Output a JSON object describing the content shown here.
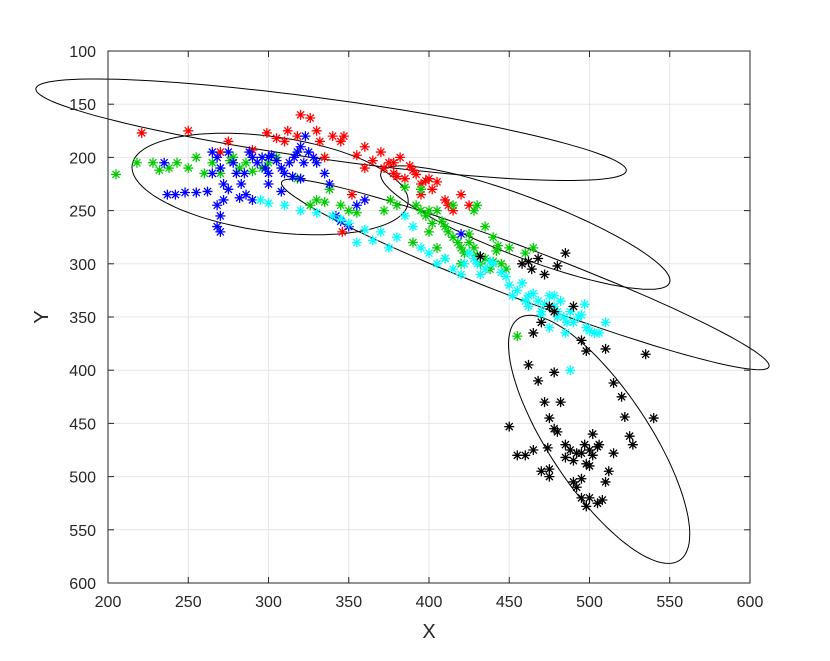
{
  "chart_data": {
    "type": "scatter",
    "title": "",
    "xlabel": "X",
    "ylabel": "Y",
    "xlim": [
      200,
      600
    ],
    "ylim": [
      100,
      600
    ],
    "y_reversed": true,
    "grid": true,
    "marker": "asterisk",
    "xticks": [
      "200",
      "250",
      "300",
      "350",
      "400",
      "450",
      "500",
      "550",
      "600"
    ],
    "yticks": [
      "100",
      "150",
      "200",
      "250",
      "300",
      "350",
      "400",
      "450",
      "500",
      "550",
      "600"
    ],
    "series": [
      {
        "color": "#ff0000",
        "points": [
          [
            221,
            177
          ],
          [
            250,
            175
          ],
          [
            270,
            195
          ],
          [
            275,
            185
          ],
          [
            290,
            193
          ],
          [
            299,
            177
          ],
          [
            305,
            182
          ],
          [
            310,
            185
          ],
          [
            312,
            175
          ],
          [
            318,
            180
          ],
          [
            320,
            160
          ],
          [
            326,
            163
          ],
          [
            330,
            175
          ],
          [
            332,
            185
          ],
          [
            335,
            200
          ],
          [
            340,
            180
          ],
          [
            345,
            185
          ],
          [
            347,
            180
          ],
          [
            352,
            235
          ],
          [
            355,
            198
          ],
          [
            360,
            210
          ],
          [
            365,
            203
          ],
          [
            370,
            195
          ],
          [
            372,
            210
          ],
          [
            375,
            205
          ],
          [
            378,
            215
          ],
          [
            380,
            218
          ],
          [
            382,
            200
          ],
          [
            385,
            220
          ],
          [
            388,
            208
          ],
          [
            390,
            212
          ],
          [
            392,
            216
          ],
          [
            395,
            225
          ],
          [
            398,
            222
          ],
          [
            400,
            220
          ],
          [
            402,
            230
          ],
          [
            405,
            223
          ],
          [
            410,
            240
          ],
          [
            412,
            245
          ],
          [
            415,
            250
          ],
          [
            420,
            235
          ],
          [
            425,
            245
          ],
          [
            360,
            190
          ],
          [
            378,
            205
          ],
          [
            395,
            235
          ],
          [
            346,
            270
          ]
        ]
      },
      {
        "color": "#00cc00",
        "points": [
          [
            205,
            216
          ],
          [
            218,
            205
          ],
          [
            228,
            205
          ],
          [
            232,
            212
          ],
          [
            238,
            210
          ],
          [
            243,
            205
          ],
          [
            250,
            210
          ],
          [
            255,
            200
          ],
          [
            260,
            215
          ],
          [
            265,
            205
          ],
          [
            270,
            215
          ],
          [
            276,
            203
          ],
          [
            282,
            210
          ],
          [
            286,
            205
          ],
          [
            290,
            213
          ],
          [
            296,
            210
          ],
          [
            305,
            200
          ],
          [
            318,
            220
          ],
          [
            326,
            245
          ],
          [
            330,
            240
          ],
          [
            335,
            242
          ],
          [
            338,
            230
          ],
          [
            345,
            245
          ],
          [
            350,
            250
          ],
          [
            355,
            252
          ],
          [
            372,
            250
          ],
          [
            376,
            240
          ],
          [
            380,
            245
          ],
          [
            385,
            228
          ],
          [
            390,
            280
          ],
          [
            392,
            245
          ],
          [
            395,
            250
          ],
          [
            398,
            255
          ],
          [
            400,
            270
          ],
          [
            402,
            262
          ],
          [
            405,
            250
          ],
          [
            408,
            260
          ],
          [
            410,
            265
          ],
          [
            412,
            270
          ],
          [
            415,
            275
          ],
          [
            418,
            280
          ],
          [
            420,
            285
          ],
          [
            422,
            290
          ],
          [
            425,
            280
          ],
          [
            428,
            285
          ],
          [
            430,
            292
          ],
          [
            432,
            300
          ],
          [
            435,
            295
          ],
          [
            438,
            305
          ],
          [
            440,
            298
          ],
          [
            442,
            288
          ],
          [
            445,
            300
          ],
          [
            448,
            305
          ],
          [
            450,
            285
          ],
          [
            455,
            368
          ],
          [
            460,
            290
          ],
          [
            465,
            285
          ],
          [
            395,
            230
          ],
          [
            415,
            245
          ],
          [
            420,
            300
          ],
          [
            428,
            250
          ],
          [
            435,
            265
          ],
          [
            440,
            275
          ],
          [
            300,
            205
          ],
          [
            278,
            200
          ],
          [
            400,
            250
          ],
          [
            405,
            285
          ],
          [
            410,
            295
          ],
          [
            425,
            272
          ],
          [
            430,
            245
          ],
          [
            443,
            283
          ]
        ]
      },
      {
        "color": "#0000ff",
        "points": [
          [
            235,
            205
          ],
          [
            237,
            235
          ],
          [
            242,
            235
          ],
          [
            248,
            233
          ],
          [
            255,
            233
          ],
          [
            262,
            232
          ],
          [
            265,
            195
          ],
          [
            268,
            200
          ],
          [
            270,
            210
          ],
          [
            272,
            225
          ],
          [
            275,
            195
          ],
          [
            278,
            205
          ],
          [
            280,
            215
          ],
          [
            283,
            225
          ],
          [
            286,
            235
          ],
          [
            288,
            195
          ],
          [
            290,
            200
          ],
          [
            293,
            205
          ],
          [
            296,
            200
          ],
          [
            298,
            210
          ],
          [
            300,
            215
          ],
          [
            302,
            198
          ],
          [
            305,
            203
          ],
          [
            308,
            210
          ],
          [
            310,
            215
          ],
          [
            313,
            205
          ],
          [
            316,
            200
          ],
          [
            318,
            195
          ],
          [
            320,
            220
          ],
          [
            322,
            205
          ],
          [
            325,
            195
          ],
          [
            328,
            200
          ],
          [
            330,
            205
          ],
          [
            335,
            215
          ],
          [
            338,
            225
          ],
          [
            342,
            255
          ],
          [
            345,
            260
          ],
          [
            350,
            265
          ],
          [
            355,
            245
          ],
          [
            270,
            255
          ],
          [
            268,
            265
          ],
          [
            270,
            270
          ],
          [
            268,
            245
          ],
          [
            272,
            240
          ],
          [
            265,
            215
          ],
          [
            275,
            230
          ],
          [
            282,
            238
          ],
          [
            290,
            240
          ],
          [
            300,
            225
          ],
          [
            308,
            232
          ],
          [
            315,
            218
          ],
          [
            285,
            215
          ],
          [
            320,
            190
          ],
          [
            323,
            180
          ],
          [
            360,
            240
          ],
          [
            420,
            272
          ],
          [
            300,
            200
          ]
        ]
      },
      {
        "color": "#00ffff",
        "points": [
          [
            295,
            240
          ],
          [
            300,
            243
          ],
          [
            310,
            245
          ],
          [
            320,
            250
          ],
          [
            330,
            252
          ],
          [
            340,
            255
          ],
          [
            345,
            258
          ],
          [
            350,
            262
          ],
          [
            355,
            280
          ],
          [
            360,
            268
          ],
          [
            365,
            278
          ],
          [
            370,
            270
          ],
          [
            375,
            285
          ],
          [
            380,
            275
          ],
          [
            385,
            255
          ],
          [
            390,
            265
          ],
          [
            395,
            285
          ],
          [
            400,
            290
          ],
          [
            405,
            300
          ],
          [
            410,
            295
          ],
          [
            415,
            305
          ],
          [
            420,
            310
          ],
          [
            422,
            300
          ],
          [
            425,
            290
          ],
          [
            428,
            295
          ],
          [
            430,
            300
          ],
          [
            432,
            310
          ],
          [
            435,
            305
          ],
          [
            438,
            298
          ],
          [
            440,
            300
          ],
          [
            445,
            308
          ],
          [
            448,
            312
          ],
          [
            450,
            320
          ],
          [
            455,
            325
          ],
          [
            458,
            318
          ],
          [
            460,
            335
          ],
          [
            462,
            330
          ],
          [
            465,
            328
          ],
          [
            468,
            335
          ],
          [
            470,
            345
          ],
          [
            472,
            338
          ],
          [
            475,
            330
          ],
          [
            478,
            340
          ],
          [
            480,
            345
          ],
          [
            482,
            335
          ],
          [
            484,
            350
          ],
          [
            486,
            355
          ],
          [
            488,
            345
          ],
          [
            490,
            355
          ],
          [
            493,
            350
          ],
          [
            495,
            348
          ],
          [
            498,
            360
          ],
          [
            500,
            363
          ],
          [
            503,
            365
          ],
          [
            506,
            365
          ],
          [
            510,
            355
          ],
          [
            485,
            365
          ],
          [
            475,
            360
          ],
          [
            488,
            400
          ],
          [
            462,
            340
          ],
          [
            478,
            330
          ],
          [
            452,
            330
          ],
          [
            497,
            338
          ],
          [
            480,
            350
          ],
          [
            470,
            348
          ]
        ]
      },
      {
        "color": "#000000",
        "points": [
          [
            432,
            293
          ],
          [
            458,
            300
          ],
          [
            462,
            298
          ],
          [
            464,
            305
          ],
          [
            468,
            295
          ],
          [
            472,
            310
          ],
          [
            475,
            340
          ],
          [
            478,
            345
          ],
          [
            480,
            302
          ],
          [
            485,
            290
          ],
          [
            490,
            340
          ],
          [
            495,
            372
          ],
          [
            498,
            382
          ],
          [
            510,
            380
          ],
          [
            515,
            412
          ],
          [
            520,
            425
          ],
          [
            522,
            444
          ],
          [
            525,
            462
          ],
          [
            527,
            470
          ],
          [
            535,
            385
          ],
          [
            540,
            445
          ],
          [
            465,
            365
          ],
          [
            470,
            355
          ],
          [
            468,
            410
          ],
          [
            462,
            395
          ],
          [
            472,
            430
          ],
          [
            475,
            445
          ],
          [
            478,
            455
          ],
          [
            480,
            458
          ],
          [
            482,
            430
          ],
          [
            478,
            402
          ],
          [
            474,
            473
          ],
          [
            470,
            495
          ],
          [
            475,
            493
          ],
          [
            485,
            482
          ],
          [
            488,
            475
          ],
          [
            490,
            485
          ],
          [
            492,
            478
          ],
          [
            495,
            478
          ],
          [
            497,
            470
          ],
          [
            500,
            475
          ],
          [
            502,
            480
          ],
          [
            505,
            472
          ],
          [
            506,
            470
          ],
          [
            500,
            490
          ],
          [
            502,
            460
          ],
          [
            498,
            488
          ],
          [
            495,
            502
          ],
          [
            490,
            505
          ],
          [
            492,
            510
          ],
          [
            495,
            520
          ],
          [
            498,
            528
          ],
          [
            500,
            520
          ],
          [
            505,
            525
          ],
          [
            508,
            522
          ],
          [
            510,
            505
          ],
          [
            512,
            495
          ],
          [
            515,
            478
          ],
          [
            485,
            470
          ],
          [
            450,
            453
          ],
          [
            455,
            480
          ],
          [
            460,
            480
          ],
          [
            465,
            475
          ],
          [
            475,
            500
          ]
        ]
      }
    ],
    "ellipses": [
      {
        "cx": 339,
        "cy": 174,
        "rx": 188,
        "ry": 28,
        "angle_deg": 12,
        "color": "#000000"
      },
      {
        "cx": 301,
        "cy": 225,
        "rx": 88,
        "ry": 44,
        "angle_deg": 14,
        "color": "#000000"
      },
      {
        "cx": 460,
        "cy": 266,
        "rx": 104,
        "ry": 26,
        "angle_deg": 31,
        "color": "#000000"
      },
      {
        "cx": 460,
        "cy": 310,
        "rx": 175,
        "ry": 22,
        "angle_deg": 30,
        "color": "#000000"
      },
      {
        "cx": 506,
        "cy": 465,
        "rx": 125,
        "ry": 34,
        "angle_deg": 68,
        "color": "#000000"
      }
    ]
  }
}
